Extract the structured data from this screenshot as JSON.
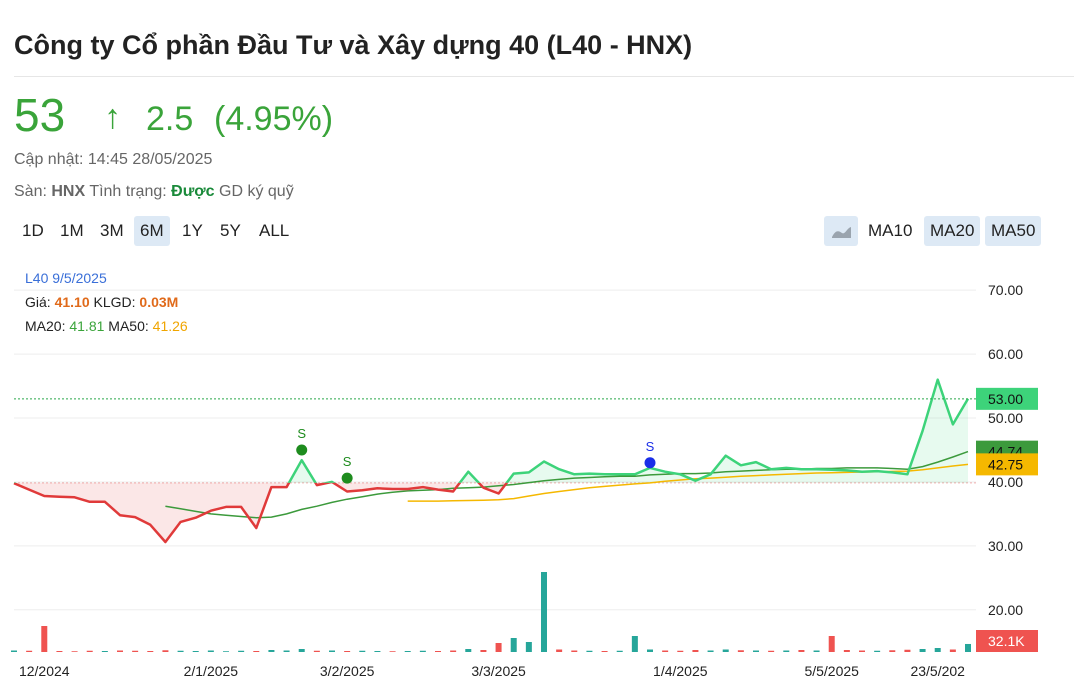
{
  "header": {
    "title": "Công ty Cổ phần Đầu Tư và Xây dựng 40 (L40 - HNX)",
    "price": "53",
    "change": "2.5",
    "change_pct": "(4.95%)",
    "updated": "Cập nhật: 14:45 28/05/2025",
    "exchange_label": "Sàn:",
    "exchange": "HNX",
    "status_label": "Tình trạng:",
    "status": "Được",
    "status_note": "GD ký quỹ"
  },
  "controls": {
    "ranges": [
      {
        "label": "1D",
        "active": false
      },
      {
        "label": "1M",
        "active": false
      },
      {
        "label": "3M",
        "active": false
      },
      {
        "label": "6M",
        "active": true
      },
      {
        "label": "1Y",
        "active": false
      },
      {
        "label": "5Y",
        "active": false
      },
      {
        "label": "ALL",
        "active": false
      }
    ],
    "indicators": [
      {
        "label": "MA10",
        "active": false
      },
      {
        "label": "MA20",
        "active": true
      },
      {
        "label": "MA50",
        "active": true
      }
    ]
  },
  "tooltip": {
    "title": "L40 9/5/2025",
    "price_label": "Giá:",
    "price": "41.10",
    "volume_label": "KLGD:",
    "volume": "0.03M",
    "ma20_label": "MA20:",
    "ma20": "41.81",
    "ma50_label": "MA50:",
    "ma50": "41.26"
  },
  "chart_data": {
    "type": "line",
    "categories": [
      null,
      null,
      "12/2024",
      null,
      null,
      null,
      null,
      null,
      null,
      null,
      null,
      null,
      null,
      "2/1/2025",
      null,
      null,
      null,
      null,
      null,
      null,
      null,
      null,
      "3/2/2025",
      null,
      null,
      null,
      null,
      null,
      null,
      null,
      null,
      null,
      "3/3/2025",
      null,
      null,
      null,
      null,
      null,
      null,
      null,
      null,
      null,
      null,
      null,
      "1/4/2025",
      null,
      null,
      null,
      null,
      null,
      null,
      null,
      null,
      null,
      "5/5/2025",
      null,
      null,
      null,
      null,
      null,
      null,
      "23/5/202",
      null,
      null
    ],
    "ylim": [
      13.4,
      75.5
    ],
    "yticks": [
      {
        "value": 20,
        "label": "20.00"
      },
      {
        "value": 30,
        "label": "30.00"
      },
      {
        "value": 40,
        "label": "40.00"
      },
      {
        "value": 50,
        "label": "50.00"
      },
      {
        "value": 60,
        "label": "60.00"
      },
      {
        "value": 70,
        "label": "70.00"
      }
    ],
    "grid": true,
    "baseline": 39.85,
    "series": [
      {
        "color": "#3dd37a",
        "down_color": "#e03a3a",
        "values": [
          39.8,
          38.8,
          37.8,
          37.7,
          37.6,
          36.9,
          36.9,
          34.8,
          34.5,
          33.3,
          30.6,
          33.75,
          34.4,
          35.5,
          36.1,
          36.1,
          32.8,
          39.2,
          39.2,
          43.4,
          39.5,
          40,
          38.5,
          38.7,
          39,
          38.9,
          38.9,
          39.2,
          38.8,
          38.5,
          41.6,
          39.1,
          38.2,
          41.3,
          41.5,
          43.2,
          42,
          41.2,
          41.3,
          41.2,
          41.2,
          41.2,
          42.2,
          41.6,
          41.2,
          40.2,
          41.2,
          44.1,
          42.6,
          43.1,
          42,
          42.2,
          42,
          42,
          41.9,
          41.8,
          41.6,
          41.7,
          41.5,
          41.2,
          48,
          56,
          49,
          53
        ],
        "value_labels": [
          null,
          null,
          null,
          null,
          null,
          null,
          null,
          null,
          null,
          null,
          null,
          null,
          null,
          null,
          null,
          null,
          null,
          null,
          null,
          null,
          null,
          null,
          null,
          null,
          null,
          null,
          null,
          null,
          null,
          null,
          null,
          null,
          null,
          null,
          null,
          null,
          null,
          null,
          null,
          null,
          null,
          null,
          null,
          null,
          null,
          null,
          null,
          null,
          null,
          null,
          null,
          null,
          null,
          null,
          null,
          null,
          null,
          null,
          null,
          null,
          null,
          null,
          null,
          "53.00"
        ]
      },
      {
        "color": "#3c9a3c",
        "values": [
          null,
          null,
          null,
          null,
          null,
          null,
          null,
          null,
          null,
          null,
          36.2,
          35.8,
          35.4,
          35,
          34.8,
          34.6,
          34.4,
          34.5,
          35,
          35.7,
          36.2,
          36.8,
          37.3,
          37.7,
          38.1,
          38.4,
          38.6,
          38.7,
          38.8,
          39,
          39.1,
          39.2,
          39.4,
          39.6,
          39.9,
          40.2,
          40.4,
          40.6,
          40.7,
          40.8,
          40.9,
          40.9,
          41.1,
          41.2,
          41.3,
          41.3,
          41.4,
          41.6,
          41.7,
          41.8,
          41.9,
          42,
          42,
          42.1,
          42.1,
          42.2,
          42.2,
          42.2,
          42.1,
          42,
          42.4,
          43.1,
          43.9,
          44.74
        ],
        "value_labels": [
          null,
          null,
          null,
          null,
          null,
          null,
          null,
          null,
          null,
          null,
          null,
          null,
          null,
          null,
          null,
          null,
          null,
          null,
          null,
          null,
          null,
          null,
          null,
          null,
          null,
          null,
          null,
          null,
          null,
          null,
          null,
          null,
          null,
          null,
          null,
          null,
          null,
          null,
          null,
          null,
          null,
          null,
          null,
          null,
          null,
          null,
          null,
          null,
          null,
          null,
          null,
          null,
          null,
          null,
          null,
          null,
          null,
          null,
          null,
          null,
          null,
          null,
          null,
          "44.74"
        ]
      },
      {
        "color": "#f5b800",
        "values": [
          null,
          null,
          null,
          null,
          null,
          null,
          null,
          null,
          null,
          null,
          null,
          null,
          null,
          null,
          null,
          null,
          null,
          null,
          null,
          null,
          null,
          null,
          null,
          null,
          null,
          null,
          37,
          37,
          37,
          37.05,
          37.1,
          37.15,
          37.2,
          37.4,
          37.8,
          38.2,
          38.5,
          38.8,
          39.1,
          39.3,
          39.5,
          39.7,
          39.85,
          40.1,
          40.3,
          40.5,
          40.6,
          40.75,
          40.9,
          41,
          41.1,
          41.2,
          41.3,
          41.4,
          41.45,
          41.5,
          41.55,
          41.6,
          41.65,
          41.7,
          41.9,
          42.2,
          42.5,
          42.75
        ],
        "value_labels": [
          null,
          null,
          null,
          null,
          null,
          null,
          null,
          null,
          null,
          null,
          null,
          null,
          null,
          null,
          null,
          null,
          null,
          null,
          null,
          null,
          null,
          null,
          null,
          null,
          null,
          null,
          null,
          null,
          null,
          null,
          null,
          null,
          null,
          null,
          null,
          null,
          null,
          null,
          null,
          null,
          null,
          null,
          null,
          null,
          null,
          null,
          null,
          null,
          null,
          null,
          null,
          null,
          null,
          null,
          null,
          null,
          null,
          null,
          null,
          null,
          null,
          null,
          null,
          "42.75"
        ]
      }
    ],
    "volume": {
      "up_color": "#26a69a",
      "down_color": "#ef5350",
      "ylim": [
        0,
        400000
      ],
      "values": [
        6000,
        5000,
        104000,
        4000,
        3000,
        5000,
        4000,
        6000,
        5000,
        4000,
        7000,
        5000,
        4000,
        6000,
        3000,
        5000,
        4000,
        8000,
        6000,
        12000,
        5000,
        6000,
        4000,
        5000,
        4000,
        3000,
        4000,
        5000,
        4000,
        6000,
        12000,
        8000,
        36000,
        56000,
        40000,
        320000,
        10000,
        6000,
        5000,
        4000,
        5000,
        64000,
        10000,
        6000,
        5000,
        8000,
        6000,
        10000,
        7000,
        6000,
        5000,
        6000,
        8000,
        6000,
        64000,
        8000,
        6000,
        5000,
        7000,
        9000,
        12000,
        16000,
        10000,
        32100
      ],
      "value_labels": [
        null,
        null,
        null,
        null,
        null,
        null,
        null,
        null,
        null,
        null,
        null,
        null,
        null,
        null,
        null,
        null,
        null,
        null,
        null,
        null,
        null,
        null,
        null,
        null,
        null,
        null,
        null,
        null,
        null,
        null,
        null,
        null,
        null,
        null,
        null,
        null,
        null,
        null,
        null,
        null,
        null,
        null,
        null,
        null,
        null,
        null,
        null,
        null,
        null,
        null,
        null,
        null,
        null,
        null,
        null,
        null,
        null,
        null,
        null,
        null,
        null,
        null,
        null,
        "32.1K"
      ]
    },
    "signals": [
      {
        "at": 19,
        "value": 45,
        "label": "S",
        "color": "#1e8c1e"
      },
      {
        "at": 22,
        "value": 40.6,
        "label": "S",
        "color": "#1e8c1e"
      },
      {
        "at": 42,
        "value": 43,
        "label": "S",
        "color": "#1a2ee8"
      }
    ]
  }
}
